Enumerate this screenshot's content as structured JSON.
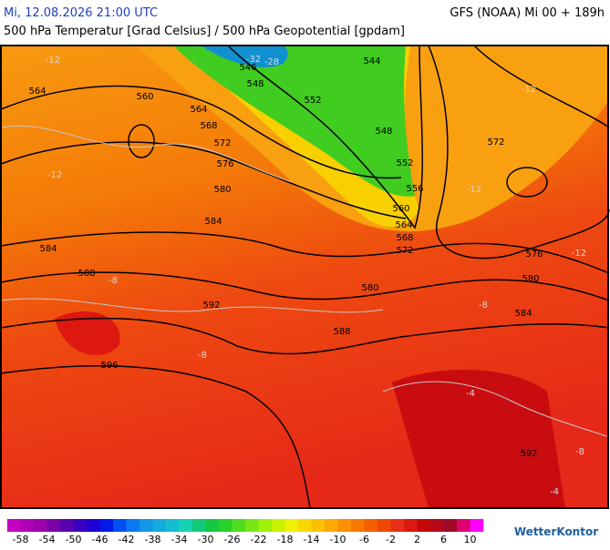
{
  "header": {
    "date": "Mi, 12.08.2026 21:00 UTC",
    "model": "GFS (NOAA) Mi 00 + 189h",
    "title": "500 hPa Temperatur [Grad Celsius] / 500 hPa Geopotential [gpdam]"
  },
  "map": {
    "geopotential_labels": [
      "564",
      "560",
      "564",
      "568",
      "572",
      "576",
      "580",
      "584",
      "584",
      "588",
      "592",
      "596",
      "588",
      "580",
      "584",
      "580",
      "576",
      "572",
      "568",
      "564",
      "560",
      "556",
      "552",
      "548",
      "544",
      "552",
      "548",
      "546",
      "572",
      "592"
    ],
    "temperature_labels": [
      "-12",
      "-12",
      "-8",
      "-8",
      "-12",
      "-12",
      "-8",
      "-4",
      "-4",
      "-8",
      "-12",
      "-28",
      "-32"
    ]
  },
  "colorbar": {
    "lim": [
      -60,
      12
    ],
    "ticks": [
      -58,
      -54,
      -50,
      -46,
      -42,
      -38,
      -34,
      -30,
      -26,
      -22,
      -18,
      -14,
      -10,
      -6,
      -2,
      2,
      6,
      10
    ],
    "colors": [
      "#c400c4",
      "#b000b8",
      "#9c00ac",
      "#7a00a8",
      "#5a00b0",
      "#3a00c0",
      "#1e00d4",
      "#0018e8",
      "#0050f0",
      "#0a78f0",
      "#1496e6",
      "#14aadc",
      "#14bed2",
      "#14d2b4",
      "#14c878",
      "#14c840",
      "#28d228",
      "#50dc1e",
      "#78e614",
      "#a0f00a",
      "#c8f000",
      "#f0f000",
      "#f8d800",
      "#fcc000",
      "#fca800",
      "#fc9000",
      "#f87800",
      "#f46000",
      "#f04800",
      "#e83018",
      "#dc1810",
      "#c80808",
      "#b40818",
      "#a00828",
      "#e00070",
      "#ff00ff"
    ]
  },
  "brand": "WetterKontor"
}
